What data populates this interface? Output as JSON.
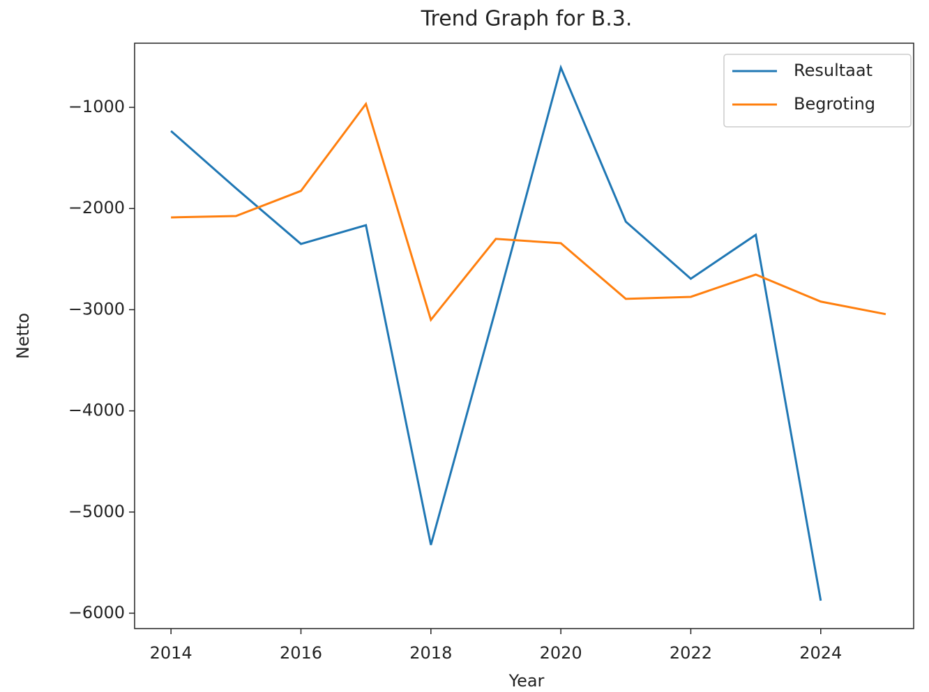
{
  "chart_data": {
    "type": "line",
    "title": "Trend Graph for B.3.",
    "xlabel": "Year",
    "ylabel": "Netto",
    "x": [
      2014,
      2015,
      2016,
      2017,
      2018,
      2019,
      2020,
      2021,
      2022,
      2023,
      2024,
      2025
    ],
    "series": [
      {
        "name": "Resultaat",
        "color": "#1f77b4",
        "values": [
          -1234,
          -1800,
          -2350,
          -2165,
          -5325,
          -2990,
          -607,
          -2130,
          -2694,
          -2260,
          -5876,
          null
        ]
      },
      {
        "name": "Begroting",
        "color": "#ff7f0e",
        "values": [
          -2088,
          -2074,
          -1826,
          -966,
          -3100,
          -2300,
          -2343,
          -2893,
          -2873,
          -2653,
          -2920,
          -3044
        ]
      }
    ],
    "xlim": [
      2013.44,
      2025.43
    ],
    "ylim": [
      -6152,
      -366
    ],
    "xticks": [
      2014,
      2016,
      2018,
      2020,
      2022,
      2024
    ],
    "yticks": [
      {
        "value": -6000,
        "label": "−6000"
      },
      {
        "value": -5000,
        "label": "−5000"
      },
      {
        "value": -4000,
        "label": "−4000"
      },
      {
        "value": -3000,
        "label": "−3000"
      },
      {
        "value": -2000,
        "label": "−2000"
      },
      {
        "value": -1000,
        "label": "−1000"
      }
    ],
    "legend": "upper right"
  }
}
